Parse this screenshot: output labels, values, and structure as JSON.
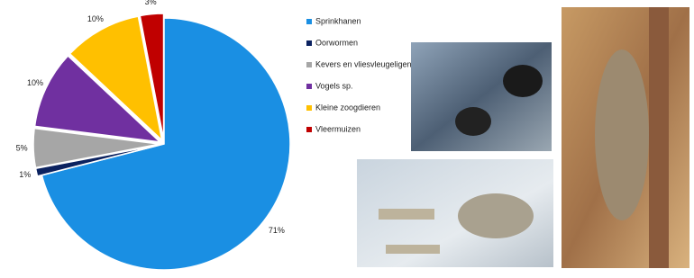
{
  "chart_data": {
    "type": "pie",
    "categories": [
      "Sprinkhanen",
      "Oorwormen",
      "Kevers en vliesvleugeligen",
      "Vogels sp.",
      "Kleine zoogdieren",
      "Vleermuizen"
    ],
    "values": [
      71,
      1,
      5,
      10,
      10,
      3
    ],
    "value_labels": [
      "71%",
      "1%",
      "5%",
      "10%",
      "10%",
      "3%"
    ],
    "colors": [
      "#1a8fe3",
      "#0b2260",
      "#a6a6a6",
      "#7030a0",
      "#ffc000",
      "#c00000"
    ]
  }
}
